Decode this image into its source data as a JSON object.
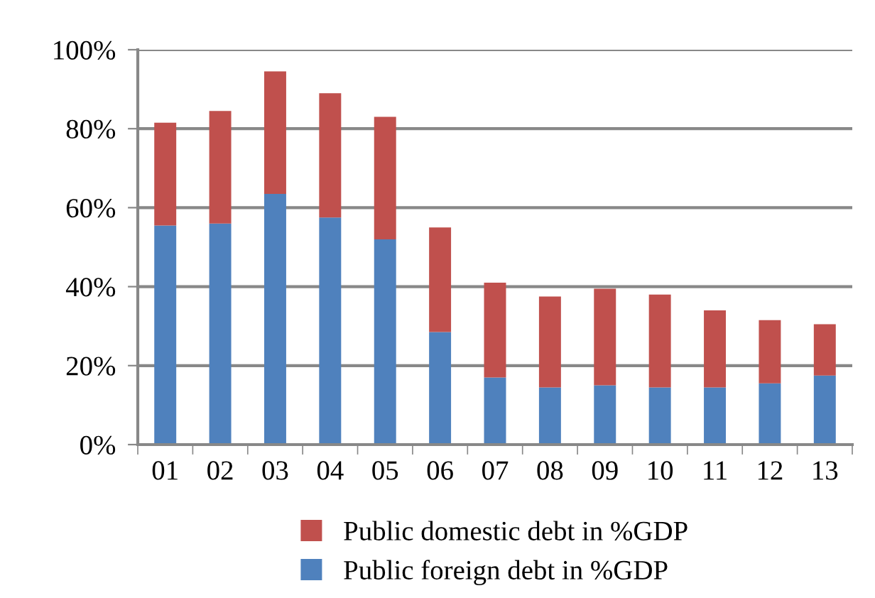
{
  "chart_data": {
    "type": "bar",
    "stacked": true,
    "categories": [
      "01",
      "02",
      "03",
      "04",
      "05",
      "06",
      "07",
      "08",
      "09",
      "10",
      "11",
      "12",
      "13"
    ],
    "series": [
      {
        "name": "Public foreign debt in %GDP",
        "color": "#4f81bd",
        "values": [
          55.5,
          56,
          63.5,
          57.5,
          52,
          28.5,
          17,
          14.5,
          15,
          14.5,
          14.5,
          15.5,
          17.5
        ]
      },
      {
        "name": "Public domestic debt in %GDP",
        "color": "#c0504d",
        "values": [
          26,
          28.5,
          31,
          31.5,
          31,
          26.5,
          24,
          23,
          24.5,
          23.5,
          19.5,
          16,
          13
        ]
      }
    ],
    "ylim": [
      0,
      100
    ],
    "yticks": [
      {
        "value": 0,
        "label": "0%"
      },
      {
        "value": 20,
        "label": "20%"
      },
      {
        "value": 40,
        "label": "40%"
      },
      {
        "value": 60,
        "label": "60%"
      },
      {
        "value": 80,
        "label": "80%"
      },
      {
        "value": 100,
        "label": "100%"
      }
    ],
    "grid": "y",
    "legend": "bottom"
  }
}
